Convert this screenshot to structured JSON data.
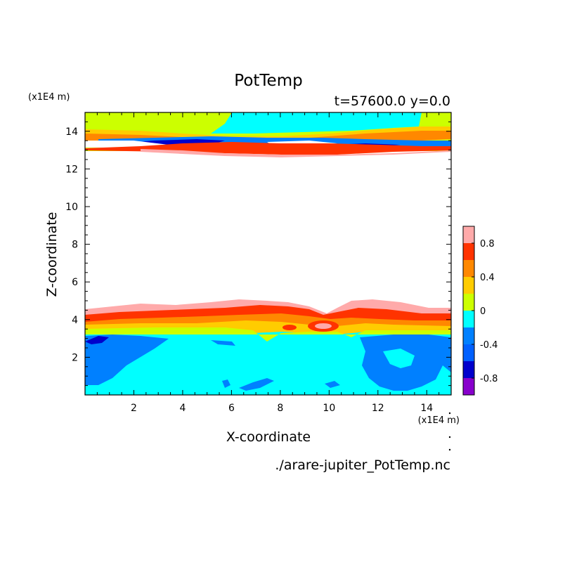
{
  "chart_data": {
    "type": "contour",
    "title": "PotTemp",
    "subtitle": "t=57600.0 y=0.0",
    "xlabel": "X-coordinate",
    "ylabel": "Z-coordinate",
    "x_scale_label": "(x1E4 m)",
    "y_scale_label": "(x1E4 m)",
    "source": "./arare-jupiter_PotTemp.nc",
    "xlim": [
      0,
      15
    ],
    "ylim": [
      0,
      15
    ],
    "x_ticks": [
      "2",
      "4",
      "6",
      "8",
      "10",
      "12",
      "14"
    ],
    "y_ticks": [
      "2",
      "4",
      "6",
      "8",
      "10",
      "12",
      "14"
    ],
    "colorbar": {
      "range": [
        -1.0,
        1.0
      ],
      "levels": [
        -1.0,
        -0.8,
        -0.6,
        -0.4,
        -0.2,
        0.0,
        0.2,
        0.4,
        0.6,
        0.8,
        1.0
      ],
      "colors": [
        "#8800cc",
        "#0000cc",
        "#0060ff",
        "#0080ff",
        "#00ffff",
        "#ccff00",
        "#ffcc00",
        "#ff8800",
        "#ff3300",
        "#ffaaaa"
      ],
      "tick_labels": [
        "0.8",
        "0.4",
        "0",
        "-0.4",
        "-0.8"
      ],
      "tick_values": [
        0.8,
        0.4,
        0.0,
        -0.4,
        -0.8
      ]
    },
    "features": [
      {
        "name": "upper anomaly layer",
        "z_range": [
          13,
          15
        ],
        "value_range": [
          -0.8,
          1.0
        ]
      },
      {
        "name": "lower anomaly layer",
        "z_range": [
          3,
          5
        ],
        "value_range": [
          -0.4,
          1.0
        ]
      }
    ]
  }
}
